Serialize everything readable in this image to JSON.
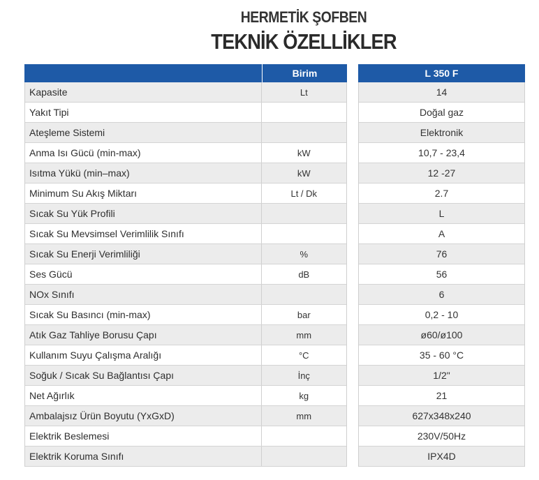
{
  "title": {
    "line1": "HERMETİK ŞOFBEN",
    "line2": "TEKNİK ÖZELLİKLER"
  },
  "table": {
    "unit_header": "Birim",
    "model_header": "L 350 F",
    "rows": [
      {
        "name": "Kapasite",
        "unit": "Lt",
        "value": "14"
      },
      {
        "name": "Yakıt Tipi",
        "unit": "",
        "value": "Doğal gaz"
      },
      {
        "name": "Ateşleme Sistemi",
        "unit": "",
        "value": "Elektronik"
      },
      {
        "name": "Anma Isı Gücü (min-max)",
        "unit": "kW",
        "value": "10,7 - 23,4"
      },
      {
        "name": "Isıtma Yükü (min–max)",
        "unit": "kW",
        "value": "12 -27"
      },
      {
        "name": "Minimum Su Akış Miktarı",
        "unit": "Lt / Dk",
        "value": "2.7"
      },
      {
        "name": "Sıcak Su Yük Profili",
        "unit": "",
        "value": "L"
      },
      {
        "name": "Sıcak Su Mevsimsel Verimlilik Sınıfı",
        "unit": "",
        "value": "A"
      },
      {
        "name": "Sıcak Su Enerji Verimliliği",
        "unit": "%",
        "value": "76"
      },
      {
        "name": "Ses Gücü",
        "unit": "dB",
        "value": "56"
      },
      {
        "name": "NOx Sınıfı",
        "unit": "",
        "value": "6"
      },
      {
        "name": "Sıcak Su Basıncı (min-max)",
        "unit": "bar",
        "value": "0,2 - 10"
      },
      {
        "name": "Atık Gaz Tahliye Borusu Çapı",
        "unit": "mm",
        "value": "ø60/ø100"
      },
      {
        "name": "Kullanım Suyu Çalışma Aralığı",
        "unit": "°C",
        "value": "35 - 60 °C"
      },
      {
        "name": "Soğuk / Sıcak Su Bağlantısı Çapı",
        "unit": "İnç",
        "value": "1/2\""
      },
      {
        "name": "Net Ağırlık",
        "unit": "kg",
        "value": "21"
      },
      {
        "name": "Ambalajsız Ürün Boyutu (YxGxD)",
        "unit": "mm",
        "value": "627x348x240"
      },
      {
        "name": "Elektrik Beslemesi",
        "unit": "",
        "value": "230V/50Hz"
      },
      {
        "name": "Elektrik Koruma Sınıfı",
        "unit": "",
        "value": "IPX4D"
      }
    ]
  }
}
